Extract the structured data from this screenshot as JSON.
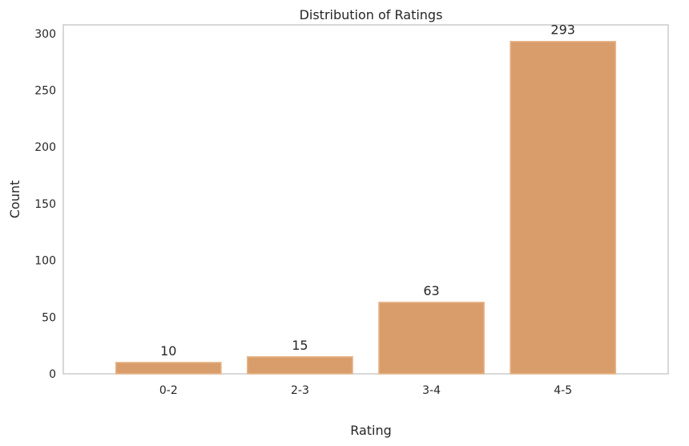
{
  "chart_data": {
    "type": "bar",
    "title": "Distribution of Ratings",
    "xlabel": "Rating",
    "ylabel": "Count",
    "categories": [
      "0-2",
      "2-3",
      "3-4",
      "4-5"
    ],
    "values": [
      10,
      15,
      63,
      293
    ],
    "data_labels": [
      "10",
      "15",
      "63",
      "293"
    ],
    "ylim": [
      0,
      307.65
    ],
    "yticks": [
      0,
      50,
      100,
      150,
      200,
      250,
      300
    ],
    "grid": false,
    "legend": "none",
    "bar_color": "#d89d6a"
  }
}
